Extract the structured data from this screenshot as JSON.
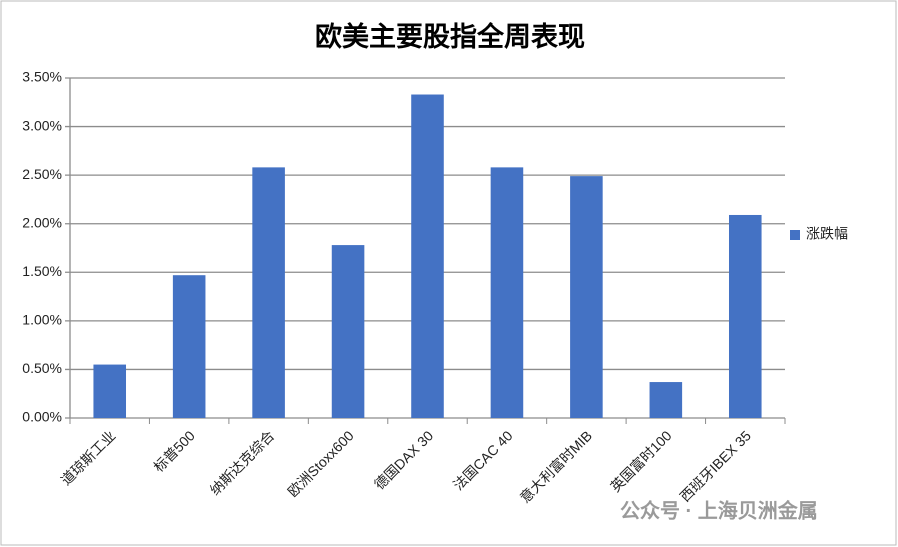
{
  "chart_data": {
    "type": "bar",
    "title": "欧美主要股指全周表现",
    "categories": [
      "道琼斯工业",
      "标普500",
      "纳斯达克综合",
      "欧洲Stoxx600",
      "德国DAX 30",
      "法国CAC 40",
      "意大利富时MIB",
      "英国富时100",
      "西班牙IBEX 35"
    ],
    "series": [
      {
        "name": "涨跌幅",
        "color": "#4472c4",
        "values": [
          0.55,
          1.47,
          2.58,
          1.78,
          3.33,
          2.58,
          2.49,
          0.37,
          2.09
        ]
      }
    ],
    "ylim": [
      0,
      3.5
    ],
    "yticks": [
      {
        "value": 0,
        "label": "0.00%"
      },
      {
        "value": 0.5,
        "label": "0.50%"
      },
      {
        "value": 1,
        "label": "1.00%"
      },
      {
        "value": 1.5,
        "label": "1.50%"
      },
      {
        "value": 2,
        "label": "2.00%"
      },
      {
        "value": 2.5,
        "label": "2.50%"
      },
      {
        "value": 3,
        "label": "3.00%"
      },
      {
        "value": 3.5,
        "label": "3.50%"
      }
    ],
    "grid": true,
    "legend": "right",
    "watermark": "公众号 · 上海贝洲金属"
  }
}
